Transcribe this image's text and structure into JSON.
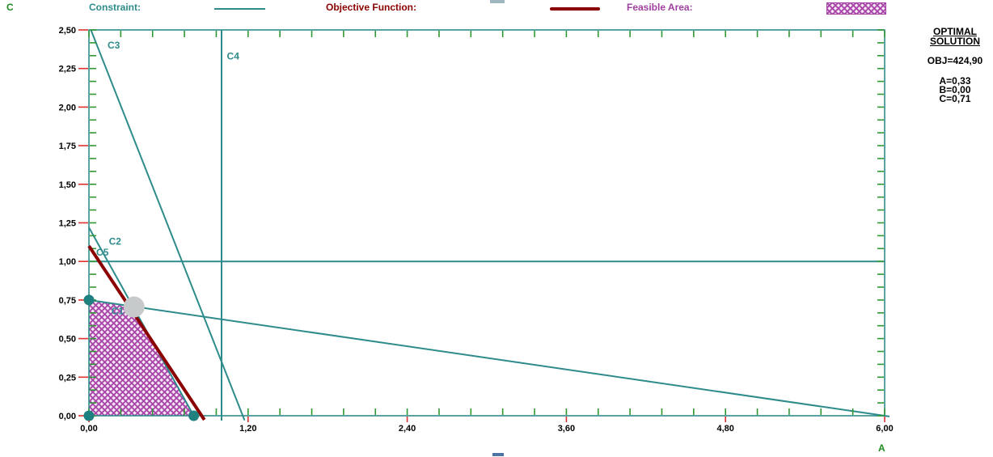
{
  "colors": {
    "constraint_teal": "#2E8B8B",
    "objective_red": "#8B0000",
    "feasible_purple": "#A844A8",
    "feasible_bg": "#F7ECF7",
    "axis_green": "#2E9933",
    "axis_title_green": "#1E8B1E",
    "tick_red": "#E03030",
    "text_black": "#000000",
    "optimal_gray": "#C6CACA",
    "corner_dot_teal": "#1F8080"
  },
  "legend": {
    "items": [
      {
        "label": "Constraint:",
        "swatch": "thin-teal-line"
      },
      {
        "label": "Objective Function:",
        "swatch": "thick-darkred-line"
      },
      {
        "label": "Feasible Area:",
        "swatch": "purple-crosshatch"
      }
    ]
  },
  "solution_panel": {
    "title": [
      "OPTIMAL",
      "SOLUTION"
    ],
    "objective_value": "OBJ=424,90",
    "variables": [
      "A=0,33",
      "B=0,00",
      "C=0,71"
    ]
  },
  "chart_data": {
    "type": "line",
    "title": "",
    "xlabel": "A",
    "ylabel": "C",
    "x_axis": {
      "label": "A",
      "min": 0,
      "max": 6,
      "major_step": 1.2,
      "minor_step": 0.24,
      "major_tick_labels": [
        "0,00",
        "1,20",
        "2,40",
        "3,60",
        "4,80",
        "6,00"
      ]
    },
    "y_axis": {
      "label": "C",
      "min": 0,
      "max": 2.5,
      "major_step": 0.25,
      "minor_step": 0.0833333,
      "major_tick_labels": [
        "0,00",
        "0,25",
        "0,50",
        "0,75",
        "1,00",
        "1,25",
        "1,50",
        "1,75",
        "2,00",
        "2,25",
        "2,50"
      ]
    },
    "grid": "off",
    "legend_position": "top",
    "constraints": [
      {
        "name": "C1",
        "points": [
          [
            0,
            0.75
          ],
          [
            6,
            0
          ]
        ],
        "label_at": [
          0.17,
          0.68
        ]
      },
      {
        "name": "C2",
        "points": [
          [
            0,
            1.22
          ],
          [
            0.79,
            0
          ]
        ],
        "label_at": [
          0.15,
          1.13
        ]
      },
      {
        "name": "C3",
        "points": [
          [
            0.015,
            2.5
          ],
          [
            1.16,
            0
          ]
        ],
        "label_at": [
          0.14,
          2.4
        ]
      },
      {
        "name": "C4",
        "points": [
          [
            1.0,
            0
          ],
          [
            1.0,
            2.5
          ]
        ],
        "label_at": [
          1.04,
          2.33
        ]
      },
      {
        "name": "C5",
        "points": [
          [
            0,
            1.0
          ],
          [
            6,
            1.0
          ]
        ],
        "label_at": [
          0.055,
          1.06
        ]
      }
    ],
    "objective_line": {
      "points": [
        [
          0,
          1.1
        ],
        [
          0.85,
          0
        ]
      ]
    },
    "feasible_region": [
      [
        0,
        0
      ],
      [
        0,
        0.75
      ],
      [
        0.331,
        0.709
      ],
      [
        0.79,
        0
      ]
    ],
    "corner_points": [
      [
        0,
        0
      ],
      [
        0,
        0.75
      ],
      [
        0.79,
        0
      ]
    ],
    "optimal_point": [
      0.34,
      0.705
    ],
    "optimal_values": {
      "A": "0,33",
      "B": "0,00",
      "C": "0,71",
      "OBJ": "424,90"
    }
  }
}
